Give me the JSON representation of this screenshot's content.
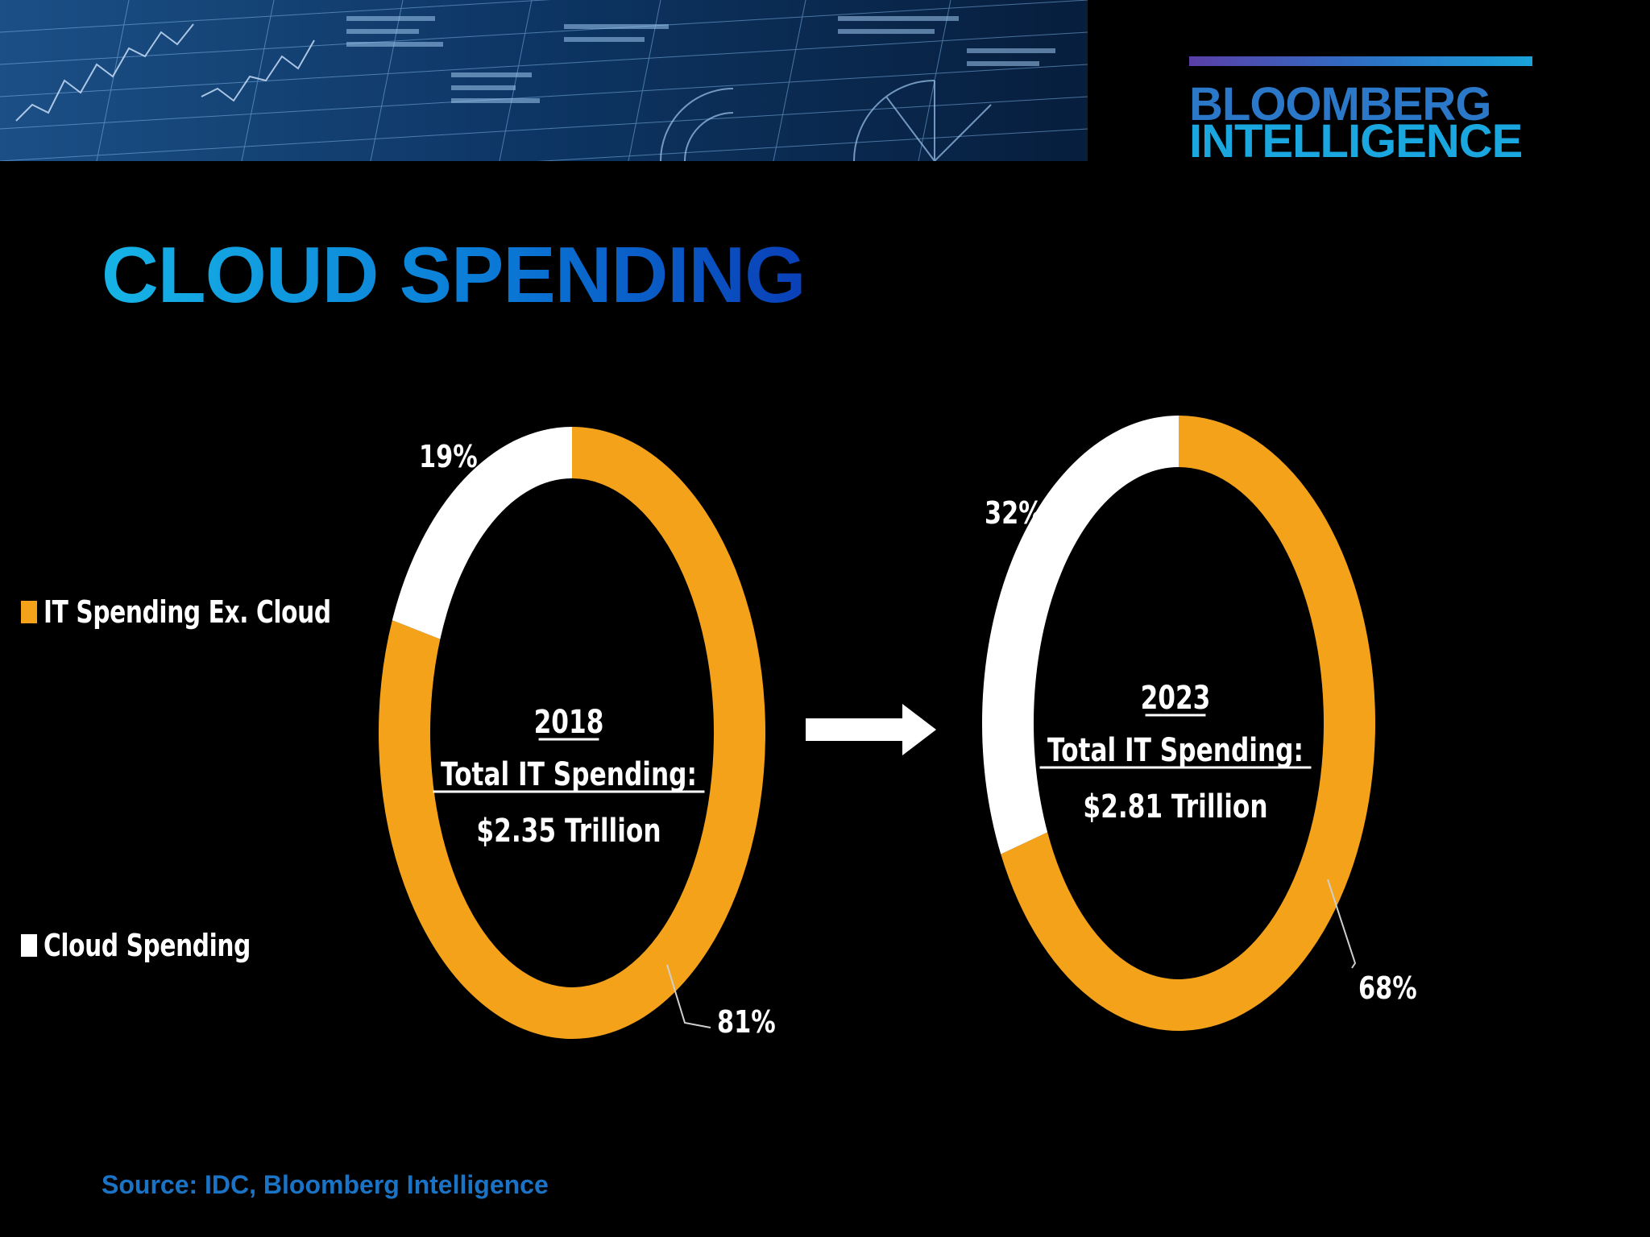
{
  "header": {
    "logo_line1": "BLOOMBERG",
    "logo_line2": "INTELLIGENCE"
  },
  "title": "CLOUD SPENDING",
  "source": "Source: IDC, Bloomberg Intelligence",
  "colors": {
    "it_ex_cloud": "#f5a21b",
    "cloud": "#ffffff",
    "background": "#000000",
    "title_start": "#16b4e6",
    "title_end": "#0a3fb7"
  },
  "chart_data": [
    {
      "type": "pie",
      "variant": "donut",
      "year": "2018",
      "center_label": "Total IT Spending:",
      "center_value": "$2.35 Trillion",
      "slices": [
        {
          "name": "IT Spending Ex. Cloud",
          "value": 81,
          "label": "81%"
        },
        {
          "name": "Cloud Spending",
          "value": 19,
          "label": "19%"
        }
      ]
    },
    {
      "type": "pie",
      "variant": "donut",
      "year": "2023",
      "center_label": "Total IT Spending:",
      "center_value": "$2.81 Trillion",
      "slices": [
        {
          "name": "IT Spending Ex. Cloud",
          "value": 68,
          "label": "68%"
        },
        {
          "name": "Cloud Spending",
          "value": 32,
          "label": "32%"
        }
      ]
    }
  ],
  "legend": [
    {
      "label": "IT Spending Ex. Cloud",
      "color": "#f5a21b"
    },
    {
      "label": "Cloud Spending",
      "color": "#ffffff"
    }
  ]
}
